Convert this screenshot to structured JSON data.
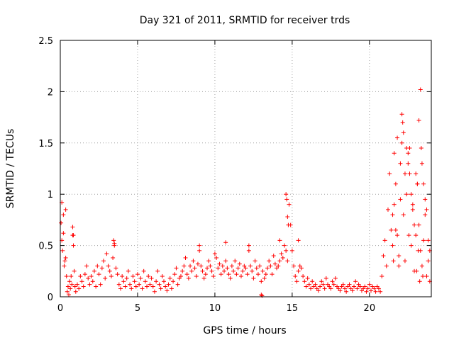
{
  "chart_data": {
    "type": "scatter",
    "title": "Day 321 of 2011, SRMTID for receiver trds",
    "xlabel": "GPS time / hours",
    "ylabel": "SRMTID / TECUs",
    "xlim": [
      0,
      24
    ],
    "ylim": [
      0,
      2.5
    ],
    "xticks": [
      0,
      5,
      10,
      15,
      20
    ],
    "yticks": [
      0,
      0.5,
      1,
      1.5,
      2,
      2.5
    ],
    "xtick_labels": [
      "0",
      "5",
      "10",
      "15",
      "20"
    ],
    "ytick_labels": [
      "0",
      "0.5",
      "1",
      "1.5",
      "2",
      "2.5"
    ],
    "grid": true,
    "marker": "+",
    "color": "#ff0000",
    "series": [
      {
        "name": "SRMTID",
        "x": [
          0.05,
          0.1,
          0.15,
          0.2,
          0.25,
          0.3,
          0.35,
          0.4,
          0.45,
          0.5,
          0.55,
          0.6,
          0.65,
          0.7,
          0.75,
          0.8,
          0.85,
          0.9,
          0.95,
          1.0,
          1.1,
          1.2,
          1.3,
          1.4,
          1.5,
          1.6,
          1.7,
          1.8,
          1.9,
          2.0,
          2.1,
          2.2,
          2.3,
          2.4,
          2.5,
          2.6,
          2.7,
          2.8,
          2.9,
          3.0,
          3.1,
          3.2,
          3.3,
          3.4,
          3.5,
          3.6,
          3.7,
          3.8,
          3.9,
          4.0,
          4.1,
          4.2,
          4.3,
          4.4,
          4.5,
          4.6,
          4.7,
          4.8,
          4.9,
          5.0,
          5.1,
          5.2,
          5.3,
          5.4,
          5.5,
          5.6,
          5.7,
          5.8,
          5.9,
          6.0,
          6.1,
          6.2,
          6.3,
          6.4,
          6.5,
          6.6,
          6.7,
          6.8,
          6.9,
          7.0,
          7.1,
          7.2,
          7.3,
          7.4,
          7.5,
          7.6,
          7.7,
          7.8,
          7.9,
          8.0,
          8.1,
          8.2,
          8.3,
          8.4,
          8.5,
          8.6,
          8.7,
          8.8,
          8.9,
          9.0,
          9.1,
          9.2,
          9.3,
          9.4,
          9.5,
          9.6,
          9.7,
          9.8,
          9.9,
          10.0,
          10.1,
          10.2,
          10.3,
          10.4,
          10.5,
          10.6,
          10.7,
          10.8,
          10.9,
          11.0,
          11.1,
          11.2,
          11.3,
          11.4,
          11.5,
          11.6,
          11.7,
          11.8,
          11.9,
          12.0,
          12.1,
          12.2,
          12.3,
          12.4,
          12.5,
          12.6,
          12.7,
          12.8,
          12.9,
          13.0,
          13.1,
          13.2,
          13.3,
          13.4,
          13.5,
          13.6,
          13.7,
          13.8,
          13.9,
          14.0,
          14.1,
          14.2,
          14.3,
          14.4,
          14.5,
          14.6,
          14.7,
          14.8,
          14.9,
          15.0,
          15.1,
          15.2,
          15.3,
          15.4,
          15.5,
          15.6,
          15.7,
          15.8,
          15.9,
          16.0,
          16.1,
          16.2,
          16.3,
          16.4,
          16.5,
          16.6,
          16.7,
          16.8,
          16.9,
          17.0,
          17.1,
          17.2,
          17.3,
          17.4,
          17.5,
          17.6,
          17.7,
          17.8,
          17.9,
          18.0,
          18.1,
          18.2,
          18.3,
          18.4,
          18.5,
          18.6,
          18.7,
          18.8,
          18.9,
          19.0,
          19.1,
          19.2,
          19.3,
          19.4,
          19.5,
          19.6,
          19.7,
          19.8,
          19.9,
          20.0,
          20.1,
          20.2,
          20.3,
          20.4,
          20.5,
          20.6,
          20.7,
          20.8,
          20.9,
          21.0,
          21.1,
          21.2,
          21.3,
          21.4,
          21.5,
          21.6,
          21.7,
          21.8,
          21.9,
          22.0,
          22.1,
          22.2,
          22.3,
          22.4,
          22.5,
          22.6,
          22.7,
          22.8,
          22.9,
          23.0,
          23.1,
          23.2,
          23.3,
          23.4,
          23.5,
          23.6,
          23.7,
          23.8,
          23.9,
          0.1,
          0.2,
          0.35,
          0.8,
          0.85,
          3.45,
          3.5,
          9.0,
          10.7,
          12.2,
          13.0,
          13.05,
          14.2,
          14.6,
          14.65,
          14.7,
          14.75,
          15.4,
          21.5,
          21.6,
          21.7,
          22.0,
          22.1,
          22.15,
          22.2,
          22.4,
          22.5,
          22.6,
          22.7,
          22.9,
          23.0,
          23.1,
          23.2,
          23.3,
          23.35,
          23.4,
          23.5,
          23.6,
          23.7,
          23.8,
          23.9,
          21.8,
          22.3,
          22.8,
          23.05,
          23.25,
          21.55,
          21.9,
          22.55,
          23.15,
          23.45
        ],
        "y": [
          0.72,
          0.55,
          0.45,
          0.62,
          0.3,
          0.35,
          0.85,
          0.2,
          0.05,
          0.1,
          0.02,
          0.15,
          0.08,
          0.2,
          0.12,
          0.6,
          0.5,
          0.25,
          0.1,
          0.05,
          0.12,
          0.08,
          0.2,
          0.15,
          0.1,
          0.22,
          0.3,
          0.18,
          0.12,
          0.2,
          0.15,
          0.25,
          0.1,
          0.3,
          0.22,
          0.12,
          0.28,
          0.35,
          0.18,
          0.42,
          0.3,
          0.25,
          0.2,
          0.38,
          0.5,
          0.28,
          0.22,
          0.12,
          0.08,
          0.2,
          0.15,
          0.1,
          0.18,
          0.25,
          0.12,
          0.08,
          0.2,
          0.15,
          0.1,
          0.22,
          0.12,
          0.18,
          0.08,
          0.25,
          0.15,
          0.1,
          0.2,
          0.12,
          0.18,
          0.1,
          0.05,
          0.15,
          0.25,
          0.12,
          0.08,
          0.2,
          0.15,
          0.1,
          0.06,
          0.12,
          0.18,
          0.08,
          0.15,
          0.22,
          0.28,
          0.12,
          0.18,
          0.2,
          0.25,
          0.3,
          0.38,
          0.22,
          0.18,
          0.3,
          0.25,
          0.35,
          0.28,
          0.2,
          0.32,
          0.45,
          0.3,
          0.25,
          0.18,
          0.22,
          0.28,
          0.35,
          0.3,
          0.25,
          0.2,
          0.42,
          0.38,
          0.28,
          0.32,
          0.22,
          0.3,
          0.25,
          0.35,
          0.28,
          0.22,
          0.18,
          0.3,
          0.25,
          0.35,
          0.22,
          0.28,
          0.32,
          0.2,
          0.25,
          0.3,
          0.28,
          0.22,
          0.45,
          0.3,
          0.25,
          0.18,
          0.35,
          0.28,
          0.22,
          0.3,
          0.15,
          0.25,
          0.18,
          0.22,
          0.28,
          0.35,
          0.3,
          0.22,
          0.4,
          0.32,
          0.28,
          0.3,
          0.35,
          0.42,
          0.38,
          0.5,
          0.45,
          0.35,
          0.9,
          0.7,
          0.45,
          0.3,
          0.2,
          0.15,
          0.25,
          0.3,
          0.28,
          0.2,
          0.15,
          0.1,
          0.18,
          0.12,
          0.08,
          0.15,
          0.1,
          0.12,
          0.08,
          0.06,
          0.1,
          0.15,
          0.12,
          0.08,
          0.18,
          0.12,
          0.1,
          0.08,
          0.15,
          0.12,
          0.18,
          0.1,
          0.08,
          0.06,
          0.1,
          0.12,
          0.08,
          0.05,
          0.1,
          0.12,
          0.08,
          0.06,
          0.1,
          0.15,
          0.08,
          0.12,
          0.1,
          0.06,
          0.08,
          0.1,
          0.05,
          0.08,
          0.12,
          0.06,
          0.1,
          0.08,
          0.05,
          0.1,
          0.08,
          0.05,
          0.2,
          0.4,
          0.55,
          0.3,
          0.85,
          1.2,
          0.65,
          0.5,
          0.9,
          1.1,
          0.6,
          0.4,
          1.3,
          1.5,
          0.8,
          0.35,
          1.0,
          1.4,
          1.2,
          0.5,
          0.9,
          0.25,
          0.6,
          1.1,
          0.7,
          0.45,
          0.3,
          0.55,
          0.8,
          0.2,
          0.35,
          0.15,
          0.92,
          0.8,
          0.38,
          0.68,
          0.6,
          0.55,
          0.52,
          0.5,
          0.53,
          0.5,
          0.02,
          0.01,
          0.55,
          1.0,
          0.95,
          0.78,
          0.7,
          0.55,
          0.8,
          1.4,
          0.65,
          0.95,
          1.78,
          1.7,
          1.6,
          1.45,
          1.3,
          1.45,
          1.0,
          0.7,
          1.2,
          1.1,
          1.72,
          2.02,
          1.45,
          1.3,
          1.1,
          0.95,
          0.85,
          0.55,
          0.45,
          1.55,
          1.2,
          0.85,
          0.25,
          0.15,
          0.35,
          0.3,
          0.6,
          0.45,
          0.2
        ]
      }
    ]
  }
}
